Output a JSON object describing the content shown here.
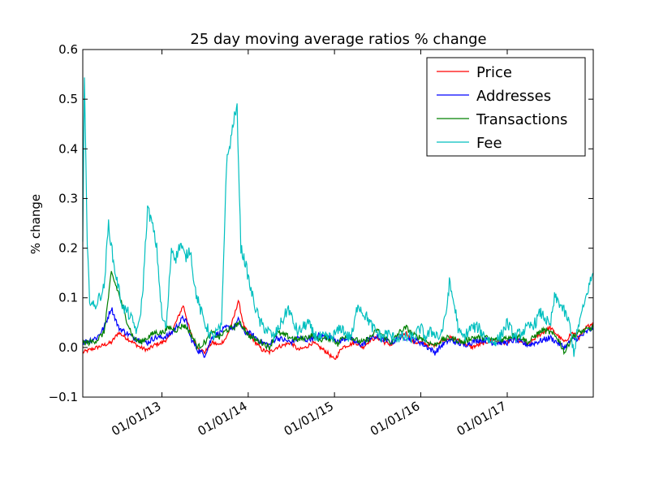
{
  "chart_data": {
    "type": "line",
    "title": "25 day moving average ratios % change",
    "xlabel": "",
    "ylabel": "% change",
    "ylim": [
      -0.1,
      0.6
    ],
    "yticks": [
      -0.1,
      0.0,
      0.1,
      0.2,
      0.3,
      0.4,
      0.5,
      0.6
    ],
    "ytick_labels": [
      "−0.1",
      "0.0",
      "0.1",
      "0.2",
      "0.3",
      "0.4",
      "0.5",
      "0.6"
    ],
    "xlim": [
      "2012-02-01",
      "2017-12-31"
    ],
    "xticks": [
      "2013-01-01",
      "2014-01-01",
      "2015-01-01",
      "2016-01-01",
      "2017-01-01"
    ],
    "xtick_labels": [
      "01/01/13",
      "01/01/14",
      "01/01/15",
      "01/01/16",
      "01/01/17"
    ],
    "grid": false,
    "legend_position": "top-right",
    "series": [
      {
        "name": "Price",
        "color": "#ff0000",
        "x": [
          "2012-02-01",
          "2012-03-01",
          "2012-04-01",
          "2012-05-01",
          "2012-06-01",
          "2012-07-01",
          "2012-08-01",
          "2012-09-01",
          "2012-10-01",
          "2012-11-01",
          "2012-12-01",
          "2013-01-01",
          "2013-02-01",
          "2013-03-01",
          "2013-04-01",
          "2013-04-15",
          "2013-05-01",
          "2013-06-01",
          "2013-07-01",
          "2013-08-01",
          "2013-09-01",
          "2013-10-01",
          "2013-11-01",
          "2013-11-20",
          "2013-12-15",
          "2014-01-01",
          "2014-02-01",
          "2014-03-01",
          "2014-04-01",
          "2014-05-01",
          "2014-06-01",
          "2014-07-01",
          "2014-08-01",
          "2014-09-01",
          "2014-10-01",
          "2014-11-01",
          "2014-12-01",
          "2015-01-01",
          "2015-01-15",
          "2015-02-01",
          "2015-03-01",
          "2015-04-01",
          "2015-05-01",
          "2015-06-01",
          "2015-07-01",
          "2015-08-01",
          "2015-09-01",
          "2015-10-01",
          "2015-11-01",
          "2015-12-01",
          "2016-01-01",
          "2016-02-01",
          "2016-03-01",
          "2016-04-01",
          "2016-05-01",
          "2016-06-01",
          "2016-07-01",
          "2016-08-01",
          "2016-09-01",
          "2016-10-01",
          "2016-11-01",
          "2016-12-01",
          "2017-01-01",
          "2017-02-01",
          "2017-03-01",
          "2017-04-01",
          "2017-05-01",
          "2017-06-01",
          "2017-07-01",
          "2017-08-01",
          "2017-09-01",
          "2017-10-01",
          "2017-11-01",
          "2017-12-01",
          "2017-12-31"
        ],
        "values": [
          -0.01,
          -0.005,
          0.0,
          0.005,
          0.01,
          0.03,
          0.02,
          0.01,
          0.0,
          -0.005,
          0.005,
          0.01,
          0.02,
          0.05,
          0.085,
          0.06,
          0.03,
          0.0,
          -0.01,
          0.01,
          0.005,
          0.02,
          0.06,
          0.095,
          0.04,
          0.03,
          0.01,
          -0.005,
          -0.01,
          0.0,
          0.005,
          0.01,
          -0.005,
          0.0,
          0.01,
          0.0,
          -0.01,
          -0.025,
          -0.015,
          0.0,
          0.005,
          0.01,
          0.0,
          0.015,
          0.02,
          0.01,
          0.005,
          0.02,
          0.03,
          0.01,
          0.01,
          0.005,
          0.005,
          0.015,
          0.02,
          0.015,
          0.01,
          0.0,
          0.005,
          0.01,
          0.015,
          0.01,
          0.01,
          0.02,
          0.01,
          0.005,
          0.02,
          0.03,
          0.04,
          0.025,
          0.01,
          0.03,
          0.02,
          0.04,
          0.05
        ]
      },
      {
        "name": "Addresses",
        "color": "#0000ff",
        "x": [
          "2012-02-01",
          "2012-03-01",
          "2012-04-01",
          "2012-05-01",
          "2012-06-01",
          "2012-07-01",
          "2012-08-01",
          "2012-09-01",
          "2012-10-01",
          "2012-11-01",
          "2012-12-01",
          "2013-01-01",
          "2013-02-01",
          "2013-03-01",
          "2013-04-01",
          "2013-04-15",
          "2013-05-01",
          "2013-06-01",
          "2013-07-01",
          "2013-08-01",
          "2013-09-01",
          "2013-10-01",
          "2013-11-01",
          "2013-11-20",
          "2013-12-15",
          "2014-01-01",
          "2014-02-01",
          "2014-03-01",
          "2014-04-01",
          "2014-05-01",
          "2014-06-01",
          "2014-07-01",
          "2014-08-01",
          "2014-09-01",
          "2014-10-01",
          "2014-11-01",
          "2014-12-01",
          "2015-01-01",
          "2015-01-15",
          "2015-02-01",
          "2015-03-01",
          "2015-04-01",
          "2015-05-01",
          "2015-06-01",
          "2015-07-01",
          "2015-08-01",
          "2015-09-01",
          "2015-10-01",
          "2015-11-01",
          "2015-12-01",
          "2016-01-01",
          "2016-02-01",
          "2016-03-01",
          "2016-04-01",
          "2016-05-01",
          "2016-06-01",
          "2016-07-01",
          "2016-08-01",
          "2016-09-01",
          "2016-10-01",
          "2016-11-01",
          "2016-12-01",
          "2017-01-01",
          "2017-02-01",
          "2017-03-01",
          "2017-04-01",
          "2017-05-01",
          "2017-06-01",
          "2017-07-01",
          "2017-08-01",
          "2017-09-01",
          "2017-10-01",
          "2017-11-01",
          "2017-12-01",
          "2017-12-31"
        ],
        "values": [
          0.01,
          0.015,
          0.02,
          0.04,
          0.08,
          0.04,
          0.03,
          0.02,
          0.015,
          0.01,
          0.02,
          0.02,
          0.025,
          0.04,
          0.06,
          0.05,
          0.02,
          -0.005,
          -0.015,
          0.02,
          0.03,
          0.04,
          0.04,
          0.055,
          0.03,
          0.03,
          0.02,
          0.01,
          0.005,
          0.02,
          0.015,
          0.01,
          0.02,
          0.015,
          0.02,
          0.025,
          0.02,
          0.02,
          0.01,
          0.015,
          0.02,
          0.01,
          0.005,
          0.02,
          0.02,
          0.015,
          0.01,
          0.02,
          0.02,
          0.015,
          0.01,
          0.0,
          -0.01,
          0.005,
          0.015,
          0.01,
          0.005,
          0.01,
          0.015,
          0.015,
          0.01,
          0.01,
          0.01,
          0.015,
          0.01,
          0.005,
          0.01,
          0.015,
          0.02,
          0.01,
          0.0,
          0.015,
          0.02,
          0.03,
          0.04
        ]
      },
      {
        "name": "Transactions",
        "color": "#008000",
        "x": [
          "2012-02-01",
          "2012-03-01",
          "2012-04-01",
          "2012-05-01",
          "2012-06-01",
          "2012-07-01",
          "2012-08-01",
          "2012-09-01",
          "2012-10-01",
          "2012-11-01",
          "2012-12-01",
          "2013-01-01",
          "2013-02-01",
          "2013-03-01",
          "2013-04-01",
          "2013-04-15",
          "2013-05-01",
          "2013-06-01",
          "2013-07-01",
          "2013-08-01",
          "2013-09-01",
          "2013-10-01",
          "2013-11-01",
          "2013-11-20",
          "2013-12-15",
          "2014-01-01",
          "2014-02-01",
          "2014-03-01",
          "2014-04-01",
          "2014-05-01",
          "2014-06-01",
          "2014-07-01",
          "2014-08-01",
          "2014-09-01",
          "2014-10-01",
          "2014-11-01",
          "2014-12-01",
          "2015-01-01",
          "2015-01-15",
          "2015-02-01",
          "2015-03-01",
          "2015-04-01",
          "2015-05-01",
          "2015-06-01",
          "2015-07-01",
          "2015-08-01",
          "2015-09-01",
          "2015-10-01",
          "2015-11-01",
          "2015-12-01",
          "2016-01-01",
          "2016-02-01",
          "2016-03-01",
          "2016-04-01",
          "2016-05-01",
          "2016-06-01",
          "2016-07-01",
          "2016-08-01",
          "2016-09-01",
          "2016-10-01",
          "2016-11-01",
          "2016-12-01",
          "2017-01-01",
          "2017-02-01",
          "2017-03-01",
          "2017-04-01",
          "2017-05-01",
          "2017-06-01",
          "2017-07-01",
          "2017-08-01",
          "2017-09-01",
          "2017-10-01",
          "2017-11-01",
          "2017-12-01",
          "2017-12-31"
        ],
        "values": [
          0.01,
          0.01,
          0.015,
          0.03,
          0.15,
          0.11,
          0.06,
          0.02,
          0.01,
          0.02,
          0.03,
          0.03,
          0.04,
          0.035,
          0.045,
          0.04,
          0.03,
          0.0,
          0.01,
          0.03,
          0.02,
          0.035,
          0.04,
          0.05,
          0.04,
          0.025,
          0.015,
          0.01,
          0.0,
          0.03,
          0.025,
          0.02,
          0.015,
          0.02,
          0.025,
          0.015,
          0.02,
          0.015,
          0.005,
          0.02,
          0.025,
          0.015,
          0.01,
          0.02,
          0.035,
          0.02,
          0.01,
          0.03,
          0.04,
          0.025,
          0.02,
          0.01,
          0.005,
          0.015,
          0.02,
          0.015,
          0.01,
          0.02,
          0.02,
          0.02,
          0.015,
          0.015,
          0.02,
          0.025,
          0.02,
          0.01,
          0.025,
          0.035,
          0.03,
          0.02,
          -0.01,
          0.02,
          0.03,
          0.035,
          0.04
        ]
      },
      {
        "name": "Fee",
        "color": "#00bfbf",
        "x": [
          "2012-02-01",
          "2012-02-08",
          "2012-02-20",
          "2012-03-01",
          "2012-03-20",
          "2012-04-10",
          "2012-05-01",
          "2012-05-20",
          "2012-06-10",
          "2012-07-01",
          "2012-07-20",
          "2012-08-10",
          "2012-09-01",
          "2012-09-20",
          "2012-10-10",
          "2012-11-01",
          "2012-11-20",
          "2012-12-10",
          "2013-01-01",
          "2013-01-20",
          "2013-02-10",
          "2013-03-01",
          "2013-03-20",
          "2013-04-10",
          "2013-05-01",
          "2013-05-20",
          "2013-06-10",
          "2013-07-01",
          "2013-07-20",
          "2013-08-01",
          "2013-08-20",
          "2013-09-10",
          "2013-10-01",
          "2013-10-20",
          "2013-11-01",
          "2013-11-15",
          "2013-12-01",
          "2013-12-20",
          "2014-01-10",
          "2014-02-01",
          "2014-02-20",
          "2014-03-10",
          "2014-04-01",
          "2014-04-20",
          "2014-05-10",
          "2014-06-01",
          "2014-06-20",
          "2014-07-10",
          "2014-08-01",
          "2014-08-20",
          "2014-09-10",
          "2014-10-01",
          "2014-10-20",
          "2014-11-10",
          "2014-12-01",
          "2014-12-20",
          "2015-01-10",
          "2015-02-01",
          "2015-03-01",
          "2015-03-20",
          "2015-04-10",
          "2015-05-01",
          "2015-05-20",
          "2015-06-10",
          "2015-07-01",
          "2015-07-20",
          "2015-08-10",
          "2015-09-01",
          "2015-10-01",
          "2015-11-01",
          "2015-12-01",
          "2016-01-01",
          "2016-01-20",
          "2016-02-10",
          "2016-03-01",
          "2016-03-20",
          "2016-04-10",
          "2016-04-20",
          "2016-05-01",
          "2016-05-20",
          "2016-06-01",
          "2016-06-10",
          "2016-07-01",
          "2016-08-01",
          "2016-09-01",
          "2016-10-01",
          "2016-11-01",
          "2016-12-01",
          "2017-01-01",
          "2017-02-01",
          "2017-03-01",
          "2017-04-01",
          "2017-05-01",
          "2017-05-20",
          "2017-06-10",
          "2017-07-01",
          "2017-07-20",
          "2017-08-10",
          "2017-09-01",
          "2017-09-20",
          "2017-10-10",
          "2017-11-01",
          "2017-11-20",
          "2017-12-10",
          "2017-12-31"
        ],
        "values": [
          0.22,
          0.54,
          0.2,
          0.1,
          0.08,
          0.1,
          0.12,
          0.25,
          0.17,
          0.12,
          0.08,
          0.07,
          0.05,
          0.03,
          0.1,
          0.28,
          0.25,
          0.2,
          0.06,
          0.04,
          0.2,
          0.18,
          0.21,
          0.18,
          0.2,
          0.12,
          0.08,
          0.05,
          0.03,
          0.02,
          0.03,
          0.04,
          0.37,
          0.42,
          0.46,
          0.48,
          0.2,
          0.17,
          0.12,
          0.08,
          0.05,
          0.04,
          0.03,
          0.02,
          0.04,
          0.06,
          0.08,
          0.05,
          0.03,
          0.04,
          0.05,
          0.03,
          0.02,
          0.02,
          0.02,
          0.02,
          0.03,
          0.04,
          0.02,
          0.03,
          0.09,
          0.07,
          0.06,
          0.04,
          0.03,
          0.02,
          0.03,
          0.02,
          0.02,
          0.02,
          0.02,
          0.04,
          0.02,
          0.03,
          0.03,
          0.02,
          0.05,
          0.08,
          0.13,
          0.09,
          0.06,
          0.03,
          0.02,
          0.04,
          0.04,
          0.02,
          0.01,
          0.02,
          0.05,
          0.02,
          0.03,
          0.04,
          0.05,
          0.07,
          0.06,
          0.04,
          0.1,
          0.09,
          0.07,
          0.05,
          -0.01,
          0.05,
          0.08,
          0.12,
          0.15
        ]
      }
    ]
  }
}
